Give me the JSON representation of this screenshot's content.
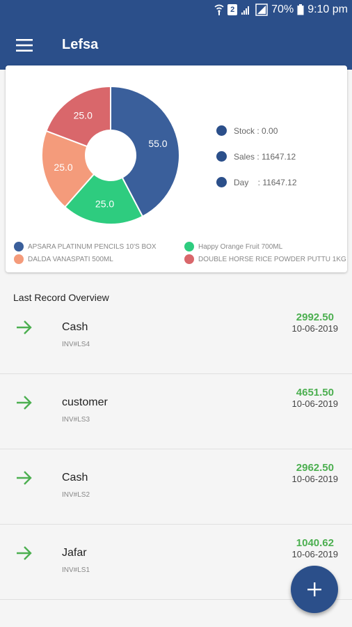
{
  "status_bar": {
    "battery": "70%",
    "time": "9:10 pm",
    "sim": "2"
  },
  "app_bar": {
    "title": "Lefsa"
  },
  "colors": {
    "primary": "#2b4f8a",
    "green_amount": "#4caf50"
  },
  "chart_data": {
    "type": "pie",
    "values": [
      55.0,
      25.0,
      25.0,
      25.0
    ],
    "value_labels": [
      "55.0",
      "25.0",
      "25.0",
      "25.0"
    ],
    "categories": [
      "APSARA PLATINUM PENCILS 10'S BOX",
      "Happy Orange Fruit 700ML",
      "DALDA VANASPATI 500ML",
      "DOUBLE HORSE RICE POWDER PUTTU 1KG"
    ],
    "colors": [
      "#3a5f9b",
      "#2ecc7f",
      "#f49b7b",
      "#d9676b"
    ],
    "donut": true
  },
  "stats": [
    {
      "label": "Stock : 0.00"
    },
    {
      "label": "Sales : 11647.12"
    },
    {
      "label": "Day    : 11647.12"
    }
  ],
  "section_title": "Last Record Overview",
  "records": [
    {
      "name": "Cash",
      "invoice": "INV#LS4",
      "amount": "2992.50",
      "date": "10-06-2019"
    },
    {
      "name": "customer",
      "invoice": "INV#LS3",
      "amount": "4651.50",
      "date": "10-06-2019"
    },
    {
      "name": "Cash",
      "invoice": "INV#LS2",
      "amount": "2962.50",
      "date": "10-06-2019"
    },
    {
      "name": "Jafar",
      "invoice": "INV#LS1",
      "amount": "1040.62",
      "date": "10-06-2019"
    }
  ],
  "icons": {
    "menu": "hamburger-menu-icon",
    "row": "arrow-right-icon",
    "fab": "plus-icon"
  }
}
